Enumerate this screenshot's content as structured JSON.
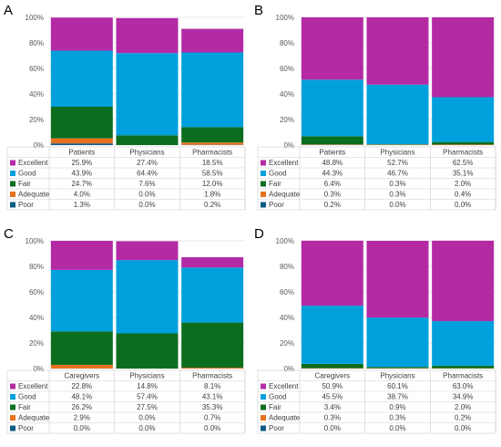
{
  "series_meta": [
    {
      "name": "Excellent",
      "color": "#B42AA5"
    },
    {
      "name": "Good",
      "color": "#00A0DC"
    },
    {
      "name": "Fair",
      "color": "#0B6E1F"
    },
    {
      "name": "Adequate",
      "color": "#E8731F"
    },
    {
      "name": "Poor",
      "color": "#0E5A84"
    }
  ],
  "chart_data": [
    {
      "type": "bar",
      "stacked": true,
      "panel_label": "A",
      "categories": [
        "Patients",
        "Physicians",
        "Pharmacists"
      ],
      "ylim": [
        0,
        100
      ],
      "yticks": [
        "0%",
        "20%",
        "40%",
        "60%",
        "80%",
        "100%"
      ],
      "grid": true,
      "legend": "table-below",
      "series": [
        {
          "name": "Excellent",
          "values": [
            25.9,
            27.4,
            18.5
          ],
          "labels": [
            "25.9%",
            "27.4%",
            "18.5%"
          ]
        },
        {
          "name": "Good",
          "values": [
            43.9,
            64.4,
            58.5
          ],
          "labels": [
            "43.9%",
            "64.4%",
            "58.5%"
          ]
        },
        {
          "name": "Fair",
          "values": [
            24.7,
            7.6,
            12.0
          ],
          "labels": [
            "24.7%",
            "7.6%",
            "12.0%"
          ]
        },
        {
          "name": "Adequate",
          "values": [
            4.0,
            0.0,
            1.8
          ],
          "labels": [
            "4.0%",
            "0.0%",
            "1.8%"
          ]
        },
        {
          "name": "Poor",
          "values": [
            1.3,
            0.0,
            0.2
          ],
          "labels": [
            "1.3%",
            "0.0%",
            "0.2%"
          ]
        }
      ]
    },
    {
      "type": "bar",
      "stacked": true,
      "panel_label": "B",
      "categories": [
        "Patients",
        "Physicians",
        "Pharmacists"
      ],
      "ylim": [
        0,
        100
      ],
      "yticks": [
        "0%",
        "20%",
        "40%",
        "60%",
        "80%",
        "100%"
      ],
      "grid": true,
      "legend": "table-below",
      "series": [
        {
          "name": "Excellent",
          "values": [
            48.8,
            52.7,
            62.5
          ],
          "labels": [
            "48.8%",
            "52.7%",
            "62.5%"
          ]
        },
        {
          "name": "Good",
          "values": [
            44.3,
            46.7,
            35.1
          ],
          "labels": [
            "44.3%",
            "46.7%",
            "35.1%"
          ]
        },
        {
          "name": "Fair",
          "values": [
            6.4,
            0.3,
            2.0
          ],
          "labels": [
            "6.4%",
            "0.3%",
            "2.0%"
          ]
        },
        {
          "name": "Adequate",
          "values": [
            0.3,
            0.3,
            0.4
          ],
          "labels": [
            "0.3%",
            "0.3%",
            "0.4%"
          ]
        },
        {
          "name": "Poor",
          "values": [
            0.2,
            0.0,
            0.0
          ],
          "labels": [
            "0.2%",
            "0.0%",
            "0.0%"
          ]
        }
      ]
    },
    {
      "type": "bar",
      "stacked": true,
      "panel_label": "C",
      "categories": [
        "Caregivers",
        "Physicians",
        "Pharmacists"
      ],
      "ylim": [
        0,
        100
      ],
      "yticks": [
        "0%",
        "20%",
        "40%",
        "60%",
        "80%",
        "100%"
      ],
      "grid": true,
      "legend": "table-below",
      "series": [
        {
          "name": "Excellent",
          "values": [
            22.8,
            14.8,
            8.1
          ],
          "labels": [
            "22.8%",
            "14.8%",
            "8.1%"
          ]
        },
        {
          "name": "Good",
          "values": [
            48.1,
            57.4,
            43.1
          ],
          "labels": [
            "48.1%",
            "57.4%",
            "43.1%"
          ]
        },
        {
          "name": "Fair",
          "values": [
            26.2,
            27.5,
            35.3
          ],
          "labels": [
            "26.2%",
            "27.5%",
            "35.3%"
          ]
        },
        {
          "name": "Adequate",
          "values": [
            2.9,
            0.0,
            0.7
          ],
          "labels": [
            "2.9%",
            "0.0%",
            "0.7%"
          ]
        },
        {
          "name": "Poor",
          "values": [
            0.0,
            0.0,
            0.0
          ],
          "labels": [
            "0.0%",
            "0.0%",
            "0.0%"
          ]
        }
      ]
    },
    {
      "type": "bar",
      "stacked": true,
      "panel_label": "D",
      "categories": [
        "Caregivers",
        "Physicians",
        "Pharmacists"
      ],
      "ylim": [
        0,
        100
      ],
      "yticks": [
        "0%",
        "20%",
        "40%",
        "60%",
        "80%",
        "100%"
      ],
      "grid": true,
      "legend": "table-below",
      "series": [
        {
          "name": "Excellent",
          "values": [
            50.9,
            60.1,
            63.0
          ],
          "labels": [
            "50.9%",
            "60.1%",
            "63.0%"
          ]
        },
        {
          "name": "Good",
          "values": [
            45.5,
            38.7,
            34.9
          ],
          "labels": [
            "45.5%",
            "38.7%",
            "34.9%"
          ]
        },
        {
          "name": "Fair",
          "values": [
            3.4,
            0.9,
            2.0
          ],
          "labels": [
            "3.4%",
            "0.9%",
            "2.0%"
          ]
        },
        {
          "name": "Adequate",
          "values": [
            0.3,
            0.3,
            0.2
          ],
          "labels": [
            "0.3%",
            "0.3%",
            "0.2%"
          ]
        },
        {
          "name": "Poor",
          "values": [
            0.0,
            0.0,
            0.0
          ],
          "labels": [
            "0.0%",
            "0.0%",
            "0.0%"
          ]
        }
      ]
    }
  ]
}
